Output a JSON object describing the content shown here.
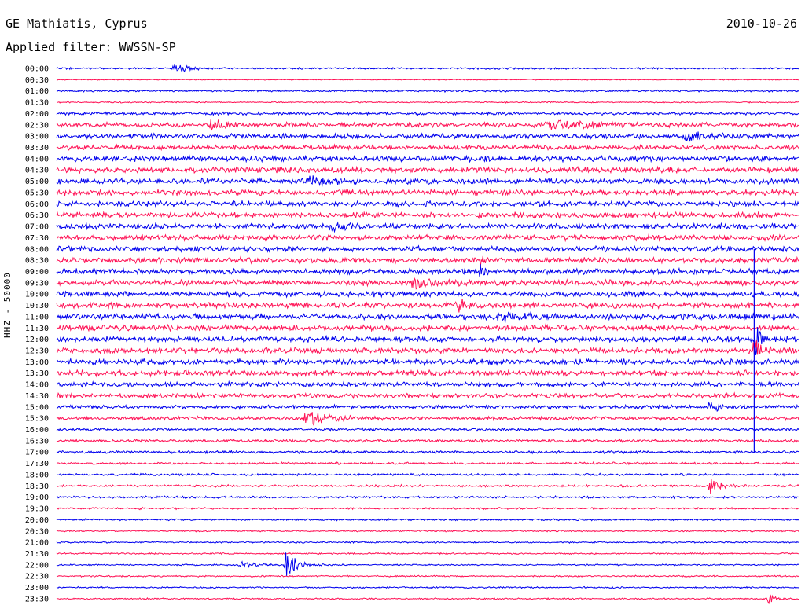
{
  "header": {
    "station": "GE Mathiatis, Cyprus",
    "date": "2010-10-26",
    "filter": "Applied filter: WWSSN-SP"
  },
  "channel_label": "HHZ - 50000",
  "colors": {
    "trace_a": "#0000ee",
    "trace_b": "#ff1155"
  },
  "chart_data": {
    "type": "line",
    "title": "GE Mathiatis, Cyprus",
    "subtitle": "Applied filter: WWSSN-SP",
    "ylabel": "HHZ - 50000",
    "row_labels": [
      "00:00",
      "00:30",
      "01:00",
      "01:30",
      "02:00",
      "02:30",
      "03:00",
      "03:30",
      "04:00",
      "04:30",
      "05:00",
      "05:30",
      "06:00",
      "06:30",
      "07:00",
      "07:30",
      "08:00",
      "08:30",
      "09:00",
      "09:30",
      "10:00",
      "10:30",
      "11:00",
      "11:30",
      "12:00",
      "12:30",
      "13:00",
      "13:30",
      "14:00",
      "14:30",
      "15:00",
      "15:30",
      "16:00",
      "16:30",
      "17:00",
      "17:30",
      "18:00",
      "18:30",
      "19:00",
      "19:30",
      "20:00",
      "20:30",
      "21:00",
      "21:30",
      "22:00",
      "22:30",
      "23:00",
      "23:30"
    ],
    "row_noise": [
      1,
      0.5,
      1,
      0.7,
      1.5,
      2.5,
      2.5,
      2.5,
      3,
      3,
      3,
      3,
      3,
      3,
      3,
      3,
      3,
      3,
      3,
      3,
      3,
      3,
      3,
      3,
      3,
      3,
      3,
      3,
      2.5,
      2.5,
      2,
      2,
      1.5,
      1.5,
      1.5,
      1.2,
      1.2,
      1.2,
      1.2,
      1,
      1,
      0.8,
      0.8,
      0.8,
      0.8,
      0.8,
      0.8,
      0.8
    ],
    "events": [
      {
        "row": 0,
        "x": 0.16,
        "amp": 6,
        "width": 0.02
      },
      {
        "row": 5,
        "x": 0.21,
        "amp": 6,
        "width": 0.03
      },
      {
        "row": 5,
        "x": 0.67,
        "amp": 5,
        "width": 0.05
      },
      {
        "row": 6,
        "x": 0.85,
        "amp": 5,
        "width": 0.04
      },
      {
        "row": 10,
        "x": 0.34,
        "amp": 6,
        "width": 0.03
      },
      {
        "row": 14,
        "x": 0.37,
        "amp": 5,
        "width": 0.02
      },
      {
        "row": 17,
        "x": 0.57,
        "amp": 10,
        "width": 0.005
      },
      {
        "row": 18,
        "x": 0.57,
        "amp": 10,
        "width": 0.005
      },
      {
        "row": 19,
        "x": 0.48,
        "amp": 6,
        "width": 0.02
      },
      {
        "row": 21,
        "x": 0.54,
        "amp": 7,
        "width": 0.02
      },
      {
        "row": 22,
        "x": 0.6,
        "amp": 6,
        "width": 0.04
      },
      {
        "row": 24,
        "x": 0.94,
        "amp": 30,
        "width": 0.008
      },
      {
        "row": 25,
        "x": 0.94,
        "amp": 20,
        "width": 0.01
      },
      {
        "row": 30,
        "x": 0.88,
        "amp": 6,
        "width": 0.02
      },
      {
        "row": 31,
        "x": 0.34,
        "amp": 9,
        "width": 0.03
      },
      {
        "row": 37,
        "x": 0.88,
        "amp": 12,
        "width": 0.015
      },
      {
        "row": 39,
        "x": 0.11,
        "amp": 6,
        "width": 0.003
      },
      {
        "row": 44,
        "x": 0.31,
        "amp": 22,
        "width": 0.015
      },
      {
        "row": 44,
        "x": 0.25,
        "amp": 4,
        "width": 0.02
      },
      {
        "row": 47,
        "x": 0.96,
        "amp": 6,
        "width": 0.01
      }
    ]
  }
}
